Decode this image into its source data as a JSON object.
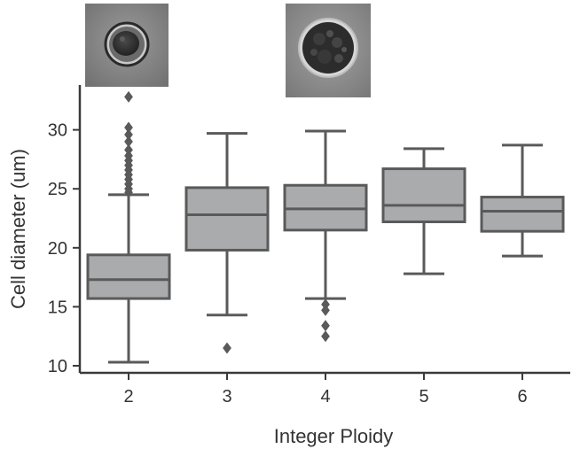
{
  "chart_data": {
    "type": "box",
    "xlabel": "Integer Ploidy",
    "ylabel": "Cell diameter (um)",
    "ylim": [
      9.4,
      33.8
    ],
    "yticks": [
      10,
      15,
      20,
      25,
      30
    ],
    "categories": [
      "2",
      "3",
      "4",
      "5",
      "6"
    ],
    "boxes": [
      {
        "category": "2",
        "whisker_low": 10.3,
        "q1": 15.7,
        "median": 17.3,
        "q3": 19.4,
        "whisker_high": 24.5,
        "outliers": [
          24.7,
          25.0,
          25.4,
          25.8,
          26.2,
          26.6,
          27.0,
          27.4,
          27.8,
          28.3,
          29.0,
          29.6,
          30.2,
          32.8
        ]
      },
      {
        "category": "3",
        "whisker_low": 14.3,
        "q1": 19.8,
        "median": 22.8,
        "q3": 25.1,
        "whisker_high": 29.7,
        "outliers": [
          11.5
        ]
      },
      {
        "category": "4",
        "whisker_low": 15.7,
        "q1": 21.5,
        "median": 23.3,
        "q3": 25.3,
        "whisker_high": 29.9,
        "outliers": [
          15.2,
          14.7,
          13.4,
          12.5
        ]
      },
      {
        "category": "5",
        "whisker_low": 17.8,
        "q1": 22.2,
        "median": 23.6,
        "q3": 26.7,
        "whisker_high": 28.4,
        "outliers": []
      },
      {
        "category": "6",
        "whisker_low": 19.3,
        "q1": 21.4,
        "median": 23.1,
        "q3": 24.3,
        "whisker_high": 28.7,
        "outliers": []
      }
    ],
    "colors": {
      "box_fill": "#a9abad",
      "line": "#5a5a5a",
      "axis": "#3a3a3a",
      "text": "#333333"
    },
    "grid": false,
    "legend": "none"
  },
  "thumbnails": [
    {
      "name": "cell-image-small",
      "depicts": "smaller cell micrograph"
    },
    {
      "name": "cell-image-large",
      "depicts": "larger cell micrograph"
    }
  ]
}
